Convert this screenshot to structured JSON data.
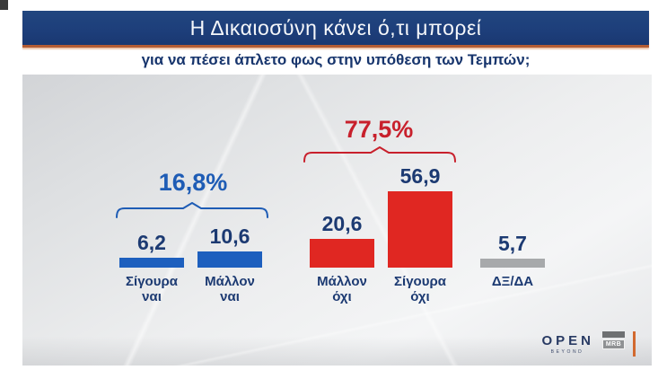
{
  "header": {
    "title": "Η Δικαιοσύνη κάνει ό,τι μπορεί",
    "subtitle": "για να πέσει άπλετο φως στην υπόθεση των Τεμπών;"
  },
  "chart_data": {
    "type": "bar",
    "title": "Η Δικαιοσύνη κάνει ό,τι μπορεί για να πέσει άπλετο φως στην υπόθεση των Τεμπών;",
    "categories": [
      "Σίγουρα ναι",
      "Μάλλον ναι",
      "Μάλλον όχι",
      "Σίγουρα όχι",
      "ΔΞ/ΔΑ"
    ],
    "categories_lines": [
      [
        "Σίγουρα",
        "ναι"
      ],
      [
        "Μάλλον",
        "ναι"
      ],
      [
        "Μάλλον",
        "όχι"
      ],
      [
        "Σίγουρα",
        "όχι"
      ],
      [
        "ΔΞ/ΔΑ"
      ]
    ],
    "values": [
      6.2,
      10.6,
      20.6,
      56.9,
      5.7
    ],
    "value_labels": [
      "6,2",
      "10,6",
      "20,6",
      "56,9",
      "5,7"
    ],
    "bar_colors": [
      "#1d5fbe",
      "#1d5fbe",
      "#e02722",
      "#e02722",
      "#a7a9ab"
    ],
    "groups": [
      {
        "label": "16,8%",
        "members": [
          "Σίγουρα ναι",
          "Μάλλον ναι"
        ],
        "color": "#1e5cb5"
      },
      {
        "label": "77,5%",
        "members": [
          "Μάλλον όχι",
          "Σίγουρα όχι"
        ],
        "color": "#c8202c"
      }
    ],
    "ylim": [
      0,
      60
    ],
    "grid": false,
    "legend": "none",
    "value_label_color": "#1c3a72",
    "category_label_color": "#1c3a72"
  },
  "footer": {
    "open_logo": "OPEN",
    "open_tagline": "BEYOND",
    "mrb_logo": "MRB"
  },
  "colors": {
    "banner_bg": "#1d3e7a",
    "banner_underline": "#b45c33",
    "subtitle_text": "#17356d",
    "panel_bg_start": "#d2d4d7",
    "panel_bg_end": "#f4f5f6",
    "blue_bar": "#1d5fbe",
    "red_bar": "#e02722",
    "gray_bar": "#a7a9ab",
    "orange_rule": "#d2692f"
  }
}
